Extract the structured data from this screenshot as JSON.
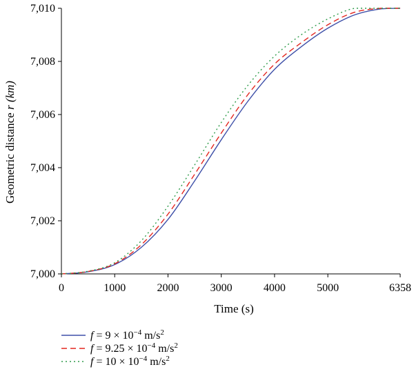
{
  "chart_data": {
    "type": "line",
    "title": "",
    "xlabel": "Time (s)",
    "ylabel": "Geometric distance r (km)",
    "ylabel_plain": "Geometric distance ",
    "ylabel_var": "r",
    "ylabel_unit": "(km)",
    "xlim": [
      0,
      6358
    ],
    "ylim": [
      7000,
      7010
    ],
    "x_ticks": [
      0,
      1000,
      2000,
      3000,
      4000,
      5000,
      6358
    ],
    "x_tick_labels": [
      "0",
      "1000",
      "2000",
      "3000",
      "4000",
      "5000",
      "6358"
    ],
    "y_ticks": [
      7000,
      7002,
      7004,
      7006,
      7008,
      7010
    ],
    "y_tick_labels": [
      "7,000",
      "7,002",
      "7,004",
      "7,006",
      "7,008",
      "7,010"
    ],
    "grid": false,
    "legend_position": "bottom-left",
    "series": [
      {
        "name": "f = 9 × 10−4 m/s2",
        "legend": {
          "var": "f",
          "mid": " = 9 × 10",
          "exp": "−4",
          "unit": " m/s",
          "unit_exp": "2"
        },
        "color": "#3d4fa8",
        "dash": "solid",
        "x": [
          0,
          500,
          1000,
          1500,
          2000,
          2500,
          3000,
          3500,
          4000,
          4500,
          5000,
          5500,
          6000,
          6358
        ],
        "y": [
          7000,
          7000.08,
          7000.35,
          7001.0,
          7002.05,
          7003.5,
          7005.05,
          7006.5,
          7007.7,
          7008.55,
          7009.25,
          7009.75,
          7009.98,
          7010
        ]
      },
      {
        "name": "f = 9.25 × 10−4 m/s2",
        "legend": {
          "var": "f",
          "mid": " = 9.25 × 10",
          "exp": "−4",
          "unit": " m/s",
          "unit_exp": "2"
        },
        "color": "#e3261f",
        "dash": "8,5",
        "x": [
          0,
          500,
          1000,
          1500,
          2000,
          2500,
          3000,
          3500,
          4000,
          4500,
          5000,
          5500,
          6000,
          6358
        ],
        "y": [
          7000,
          7000.09,
          7000.38,
          7001.1,
          7002.25,
          7003.75,
          7005.3,
          7006.75,
          7007.9,
          7008.7,
          7009.38,
          7009.85,
          7010,
          7010
        ]
      },
      {
        "name": "f = 10 × 10−4 m/s2",
        "legend": {
          "var": "f",
          "mid": " = 10 × 10",
          "exp": "−4",
          "unit": " m/s",
          "unit_exp": "2"
        },
        "color": "#2e9b4a",
        "dash": "2,4",
        "x": [
          0,
          500,
          1000,
          1500,
          2000,
          2500,
          3000,
          3500,
          4000,
          4500,
          5000,
          5500,
          6000,
          6358
        ],
        "y": [
          7000,
          7000.1,
          7000.42,
          7001.25,
          7002.55,
          7004.1,
          7005.7,
          7007.1,
          7008.2,
          7009.0,
          7009.6,
          7010,
          7010,
          7010
        ]
      }
    ]
  }
}
